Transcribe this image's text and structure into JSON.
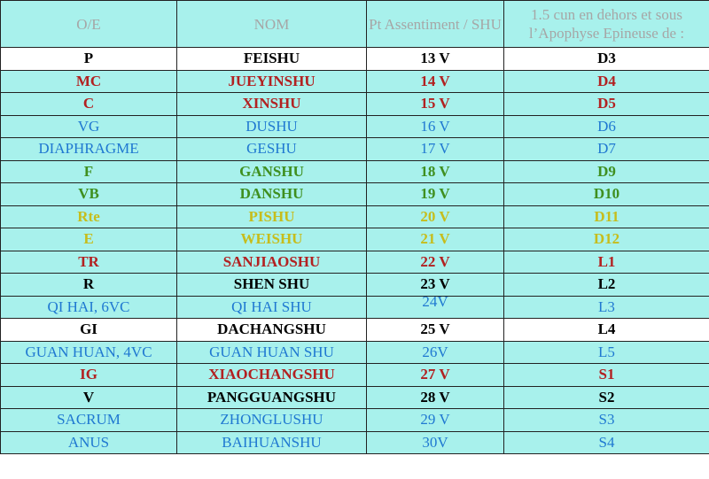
{
  "headers": {
    "oe": "O/E",
    "nom": "NOM",
    "pt": "Pt Assentiment / SHU",
    "cun": "1.5 cun en dehors et sous l’Apophyse Epineuse de :"
  },
  "rows": [
    {
      "oe": "P",
      "nom": "FEISHU",
      "pt": "13 V",
      "vert": "D3",
      "color": "black",
      "bold": true,
      "bg": "white"
    },
    {
      "oe": "MC",
      "nom": "JUEYINSHU",
      "pt": "14 V",
      "vert": "D4",
      "color": "red",
      "bold": true,
      "bg": "cyan"
    },
    {
      "oe": "C",
      "nom": "XINSHU",
      "pt": "15 V",
      "vert": "D5",
      "color": "red",
      "bold": true,
      "bg": "cyan"
    },
    {
      "oe": "VG",
      "nom": "DUSHU",
      "pt": "16 V",
      "vert": "D6",
      "color": "blue",
      "bold": false,
      "bg": "cyan"
    },
    {
      "oe": "DIAPHRAGME",
      "nom": "GESHU",
      "pt": "17 V",
      "vert": "D7",
      "color": "blue",
      "bold": false,
      "bg": "cyan"
    },
    {
      "oe": "F",
      "nom": "GANSHU",
      "pt": "18 V",
      "vert": "D9",
      "color": "green",
      "bold": true,
      "bg": "cyan"
    },
    {
      "oe": "VB",
      "nom": "DANSHU",
      "pt": "19 V",
      "vert": "D10",
      "color": "green",
      "bold": true,
      "bg": "cyan"
    },
    {
      "oe": "Rte",
      "nom": "PISHU",
      "pt": "20 V",
      "vert": "D11",
      "color": "yellow",
      "bold": true,
      "bg": "cyan"
    },
    {
      "oe": "E",
      "nom": "WEISHU",
      "pt": "21 V",
      "vert": "D12",
      "color": "yellow",
      "bold": true,
      "bg": "cyan"
    },
    {
      "oe": "TR",
      "nom": "SANJIAOSHU",
      "pt": "22 V",
      "vert": "L1",
      "color": "red",
      "bold": true,
      "bg": "cyan"
    },
    {
      "oe": "R",
      "nom": "SHEN SHU",
      "pt": "23 V",
      "vert": "L2",
      "color": "black",
      "bold": true,
      "bg": "cyan"
    },
    {
      "oe": "QI HAI, 6VC",
      "nom": "QI HAI SHU",
      "pt": "24V",
      "vert": "L3",
      "color": "blue",
      "bold": false,
      "bg": "cyan",
      "ptlift": true
    },
    {
      "oe": "GI",
      "nom": "DACHANGSHU",
      "pt": "25 V",
      "vert": "L4",
      "color": "black",
      "bold": true,
      "bg": "white"
    },
    {
      "oe": "GUAN HUAN, 4VC",
      "nom": "GUAN HUAN SHU",
      "pt": "26V",
      "vert": "L5",
      "color": "blue",
      "bold": false,
      "bg": "cyan"
    },
    {
      "oe": "IG",
      "nom": "XIAOCHANGSHU",
      "pt": "27 V",
      "vert": "S1",
      "color": "red",
      "bold": true,
      "bg": "cyan"
    },
    {
      "oe": "V",
      "nom": "PANGGUANGSHU",
      "pt": "28 V",
      "vert": "S2",
      "color": "black",
      "bold": true,
      "bg": "cyan"
    },
    {
      "oe": "SACRUM",
      "nom": "ZHONGLUSHU",
      "pt": "29 V",
      "vert": "S3",
      "color": "blue",
      "bold": false,
      "bg": "cyan"
    },
    {
      "oe": "ANUS",
      "nom": "BAIHUANSHU",
      "pt": "30V",
      "vert": "S4",
      "color": "blue",
      "bold": false,
      "bg": "cyan"
    }
  ]
}
